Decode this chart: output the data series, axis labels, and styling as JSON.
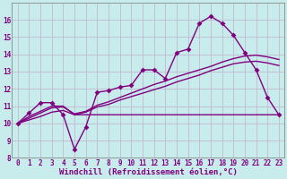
{
  "bg_color": "#c8ecec",
  "line_color": "#800080",
  "grid_color": "#c0b8d0",
  "xlabel": "Windchill (Refroidissement éolien,°C)",
  "xlim": [
    -0.5,
    23.5
  ],
  "ylim": [
    8,
    17
  ],
  "yticks": [
    8,
    9,
    10,
    11,
    12,
    13,
    14,
    15,
    16
  ],
  "xticks": [
    0,
    1,
    2,
    3,
    4,
    5,
    6,
    7,
    8,
    9,
    10,
    11,
    12,
    13,
    14,
    15,
    16,
    17,
    18,
    19,
    20,
    21,
    22,
    23
  ],
  "line1_x": [
    0,
    1,
    2,
    3,
    4,
    5,
    6,
    7,
    8,
    9,
    10,
    11,
    12,
    13,
    14,
    15,
    16,
    17,
    18,
    19,
    20,
    21,
    22,
    23
  ],
  "line1_y": [
    10.0,
    10.6,
    11.2,
    11.2,
    10.5,
    8.5,
    9.8,
    11.8,
    11.9,
    12.1,
    12.2,
    13.1,
    13.1,
    12.6,
    14.1,
    14.3,
    15.8,
    16.2,
    15.8,
    15.1,
    14.1,
    13.1,
    11.5,
    10.5
  ],
  "line2_x": [
    0,
    1,
    2,
    3,
    4,
    5,
    6,
    7,
    8,
    9,
    10,
    11,
    12,
    13,
    14,
    15,
    16,
    17,
    18,
    19,
    20,
    21,
    22,
    23
  ],
  "line2_y": [
    10.0,
    10.4,
    10.7,
    11.0,
    11.0,
    10.5,
    10.5,
    10.5,
    10.5,
    10.5,
    10.5,
    10.5,
    10.5,
    10.5,
    10.5,
    10.5,
    10.5,
    10.5,
    10.5,
    10.5,
    10.5,
    10.5,
    10.5,
    10.5
  ],
  "line3_x": [
    0,
    1,
    2,
    3,
    4,
    5,
    6,
    7,
    8,
    9,
    10,
    11,
    12,
    13,
    14,
    15,
    16,
    17,
    18,
    19,
    20,
    21,
    22,
    23
  ],
  "line3_y": [
    10.0,
    10.3,
    10.6,
    10.9,
    10.95,
    10.55,
    10.7,
    11.05,
    11.25,
    11.5,
    11.75,
    12.0,
    12.25,
    12.45,
    12.7,
    12.9,
    13.1,
    13.3,
    13.55,
    13.75,
    13.9,
    13.95,
    13.85,
    13.7
  ],
  "line4_x": [
    0,
    1,
    2,
    3,
    4,
    5,
    6,
    7,
    8,
    9,
    10,
    11,
    12,
    13,
    14,
    15,
    16,
    17,
    18,
    19,
    20,
    21,
    22,
    23
  ],
  "line4_y": [
    10.0,
    10.2,
    10.4,
    10.65,
    10.75,
    10.5,
    10.65,
    10.95,
    11.1,
    11.35,
    11.55,
    11.75,
    11.95,
    12.15,
    12.4,
    12.6,
    12.8,
    13.05,
    13.25,
    13.45,
    13.55,
    13.6,
    13.5,
    13.35
  ],
  "markersize": 3,
  "linewidth": 1.0,
  "tick_fontsize": 5.5,
  "label_fontsize": 6.5
}
